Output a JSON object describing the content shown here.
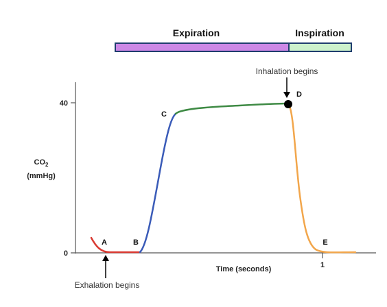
{
  "phase_bar": {
    "expiration_label": "Expiration",
    "inspiration_label": "Inspiration",
    "expiration_color": "#cc88e6",
    "inspiration_color": "#ccf1cc",
    "border_color": "#1f3d6e"
  },
  "axes": {
    "y_label_line1": "CO",
    "y_label_sub": "2",
    "y_label_line2": "(mmHg)",
    "x_label": "Time (seconds)",
    "y_ticks": [
      "40",
      "0"
    ],
    "x_ticks": [
      "1"
    ]
  },
  "points": {
    "a": "A",
    "b": "B",
    "c": "C",
    "d": "D",
    "e": "E"
  },
  "annotations": {
    "inhalation": "Inhalation begins",
    "exhalation": "Exhalation begins"
  },
  "segment_colors": {
    "baseline": "#d93a32",
    "upstroke": "#3a5bb8",
    "plateau": "#3e8a44",
    "downstroke": "#f2a64b"
  }
}
